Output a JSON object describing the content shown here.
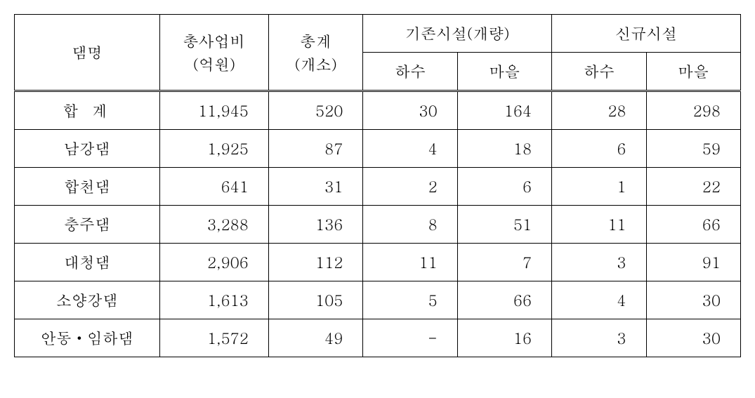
{
  "table": {
    "headers": {
      "dam_name": "댐명",
      "total_cost": "총사업비",
      "total_cost_unit": "(억원)",
      "total_count": "총계",
      "total_count_unit": "(개소)",
      "existing_group": "기존시설(개량)",
      "new_group": "신규시설",
      "sub_hasoo": "하수",
      "sub_maeul": "마을"
    },
    "rows": [
      {
        "name": "합 계",
        "cost": "11,945",
        "total": "520",
        "ex_hasoo": "30",
        "ex_maeul": "164",
        "new_hasoo": "28",
        "new_maeul": "298"
      },
      {
        "name": "남강댐",
        "cost": "1,925",
        "total": "87",
        "ex_hasoo": "4",
        "ex_maeul": "18",
        "new_hasoo": "6",
        "new_maeul": "59"
      },
      {
        "name": "합천댐",
        "cost": "641",
        "total": "31",
        "ex_hasoo": "2",
        "ex_maeul": "6",
        "new_hasoo": "1",
        "new_maeul": "22"
      },
      {
        "name": "충주댐",
        "cost": "3,288",
        "total": "136",
        "ex_hasoo": "8",
        "ex_maeul": "51",
        "new_hasoo": "11",
        "new_maeul": "66"
      },
      {
        "name": "대청댐",
        "cost": "2,906",
        "total": "112",
        "ex_hasoo": "11",
        "ex_maeul": "7",
        "new_hasoo": "3",
        "new_maeul": "91"
      },
      {
        "name": "소양강댐",
        "cost": "1,613",
        "total": "105",
        "ex_hasoo": "5",
        "ex_maeul": "66",
        "new_hasoo": "4",
        "new_maeul": "30"
      },
      {
        "name": "안동・임하댐",
        "cost": "1,572",
        "total": "49",
        "ex_hasoo": "-",
        "ex_maeul": "16",
        "new_hasoo": "3",
        "new_maeul": "30"
      }
    ]
  }
}
